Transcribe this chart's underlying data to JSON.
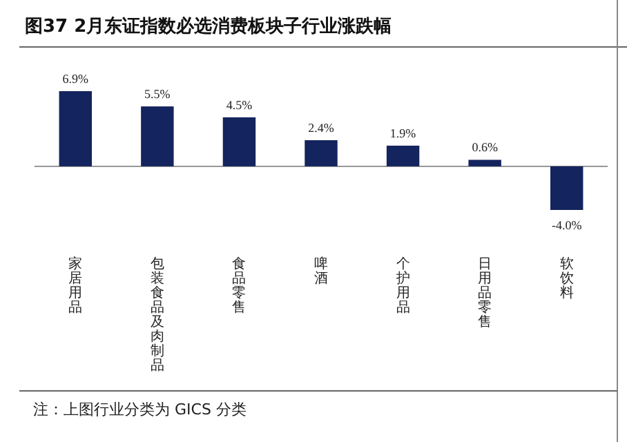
{
  "chart_data": {
    "type": "bar",
    "title": "图37 2月东证指数必选消费板块子行业涨跌幅",
    "categories": [
      "家居用品",
      "包装食品及肉制品",
      "食品零售",
      "啤酒",
      "个护用品",
      "日用品零售",
      "软饮料"
    ],
    "values": [
      6.9,
      5.5,
      4.5,
      2.4,
      1.9,
      0.6,
      -4.0
    ],
    "value_labels": [
      "6.9%",
      "5.5%",
      "4.5%",
      "2.4%",
      "1.9%",
      "0.6%",
      "-4.0%"
    ],
    "color": "#14245e",
    "annotations": [
      "注：上图行业分类为 GICS 分类"
    ]
  }
}
